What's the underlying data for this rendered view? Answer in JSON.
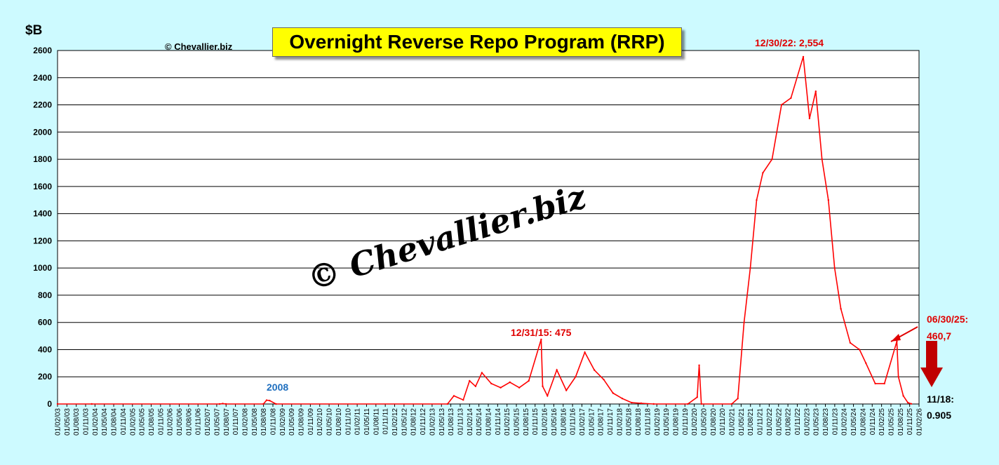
{
  "chart_data": {
    "type": "line",
    "title": "Overnight Reverse Repo Program (RRP)",
    "ylabel": "$B",
    "copyright": "© Chevallier.biz",
    "watermark": "© Chevallier.biz",
    "ylim": [
      0,
      2600
    ],
    "yticks": [
      0,
      200,
      400,
      600,
      800,
      1000,
      1200,
      1400,
      1600,
      1800,
      2000,
      2200,
      2400,
      2600
    ],
    "xlim": [
      "2003-02-01",
      "2026-02-01"
    ],
    "grid": "horizontal",
    "series": [
      {
        "color": "#ff0000",
        "points": [
          [
            "2003-02-01",
            0
          ],
          [
            "2004-01-01",
            0
          ],
          [
            "2007-06-01",
            0
          ],
          [
            "2007-07-01",
            3
          ],
          [
            "2007-08-01",
            0
          ],
          [
            "2008-08-01",
            0
          ],
          [
            "2008-09-01",
            28
          ],
          [
            "2008-10-01",
            25
          ],
          [
            "2008-12-01",
            0
          ],
          [
            "2013-07-01",
            0
          ],
          [
            "2013-09-01",
            60
          ],
          [
            "2013-12-01",
            30
          ],
          [
            "2014-02-01",
            170
          ],
          [
            "2014-04-01",
            130
          ],
          [
            "2014-06-01",
            230
          ],
          [
            "2014-09-01",
            150
          ],
          [
            "2014-12-01",
            120
          ],
          [
            "2015-03-01",
            160
          ],
          [
            "2015-06-01",
            120
          ],
          [
            "2015-09-01",
            170
          ],
          [
            "2015-12-31",
            475
          ],
          [
            "2016-01-15",
            130
          ],
          [
            "2016-03-01",
            60
          ],
          [
            "2016-06-01",
            250
          ],
          [
            "2016-09-01",
            100
          ],
          [
            "2016-12-01",
            200
          ],
          [
            "2017-03-01",
            380
          ],
          [
            "2017-06-01",
            250
          ],
          [
            "2017-09-01",
            180
          ],
          [
            "2017-12-01",
            80
          ],
          [
            "2018-03-01",
            40
          ],
          [
            "2018-06-01",
            10
          ],
          [
            "2018-09-01",
            5
          ],
          [
            "2019-01-01",
            0
          ],
          [
            "2019-12-01",
            0
          ],
          [
            "2020-03-01",
            50
          ],
          [
            "2020-03-20",
            285
          ],
          [
            "2020-04-10",
            0
          ],
          [
            "2021-02-01",
            0
          ],
          [
            "2021-04-01",
            40
          ],
          [
            "2021-06-01",
            600
          ],
          [
            "2021-08-01",
            1000
          ],
          [
            "2021-10-01",
            1500
          ],
          [
            "2021-12-01",
            1700
          ],
          [
            "2022-03-01",
            1800
          ],
          [
            "2022-06-01",
            2200
          ],
          [
            "2022-09-01",
            2250
          ],
          [
            "2022-12-30",
            2554
          ],
          [
            "2023-03-01",
            2100
          ],
          [
            "2023-05-01",
            2300
          ],
          [
            "2023-07-01",
            1800
          ],
          [
            "2023-09-01",
            1500
          ],
          [
            "2023-11-01",
            1000
          ],
          [
            "2024-01-01",
            700
          ],
          [
            "2024-04-01",
            450
          ],
          [
            "2024-07-01",
            400
          ],
          [
            "2024-09-01",
            300
          ],
          [
            "2024-12-01",
            150
          ],
          [
            "2025-03-01",
            150
          ],
          [
            "2025-06-30",
            460.7
          ],
          [
            "2025-07-15",
            200
          ],
          [
            "2025-09-01",
            60
          ],
          [
            "2025-10-15",
            10
          ],
          [
            "2025-11-18",
            0.905
          ]
        ]
      }
    ],
    "xticks": [
      "01/02/03",
      "01/05/03",
      "01/08/03",
      "01/11/03",
      "01/02/04",
      "01/05/04",
      "01/08/04",
      "01/11/04",
      "01/02/05",
      "01/05/05",
      "01/08/05",
      "01/11/05",
      "01/02/06",
      "01/05/06",
      "01/08/06",
      "01/11/06",
      "01/02/07",
      "01/05/07",
      "01/08/07",
      "01/11/07",
      "01/02/08",
      "01/05/08",
      "01/08/08",
      "01/11/08",
      "01/02/09",
      "01/05/09",
      "01/08/09",
      "01/11/09",
      "01/02/10",
      "01/05/10",
      "01/08/10",
      "01/11/10",
      "01/02/11",
      "01/05/11",
      "01/08/11",
      "01/11/11",
      "01/02/12",
      "01/05/12",
      "01/08/12",
      "01/11/12",
      "01/02/13",
      "01/05/13",
      "01/08/13",
      "01/11/13",
      "01/02/14",
      "01/05/14",
      "01/08/14",
      "01/11/14",
      "01/02/15",
      "01/05/15",
      "01/08/15",
      "01/11/15",
      "01/02/16",
      "01/05/16",
      "01/08/16",
      "01/11/16",
      "01/02/17",
      "01/05/17",
      "01/08/17",
      "01/11/17",
      "01/02/18",
      "01/05/18",
      "01/08/18",
      "01/11/18",
      "01/02/19",
      "01/05/19",
      "01/08/19",
      "01/11/19",
      "01/02/20",
      "01/05/20",
      "01/08/20",
      "01/11/20",
      "01/02/21",
      "01/05/21",
      "01/08/21",
      "01/11/21",
      "01/02/22",
      "01/05/22",
      "01/08/22",
      "01/11/22",
      "01/02/23",
      "01/05/23",
      "01/08/23",
      "01/11/23",
      "01/02/24",
      "01/05/24",
      "01/08/24",
      "01/11/24",
      "01/02/25",
      "01/05/25",
      "01/08/25",
      "01/11/25",
      "01/02/26"
    ],
    "annotations": {
      "year_2008": "2008",
      "peak_2015": "12/31/15: 475",
      "peak_2022": "12/30/22: 2,554",
      "mid_2025_date": "06/30/25:",
      "mid_2025_value": "460,7",
      "latest_date": "11/18:",
      "latest_value": "0.905"
    },
    "colors": {
      "line": "#ff0000",
      "background": "#cdfaff",
      "plot": "#ffffff",
      "title_box": "#ffff00",
      "arrow": "#c00000"
    }
  }
}
